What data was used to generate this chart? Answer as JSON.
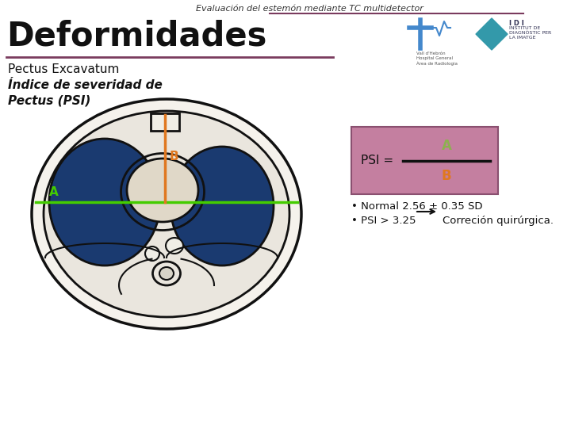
{
  "title_top": "Evaluación del estemón mediante TC multidetector",
  "title_main": "Deformidades",
  "subtitle1": "Pectus Excavatum",
  "subtitle2_line1": "Índice de severidad de",
  "subtitle2_line2": "Pectus (PSI)",
  "bg_color": "#ffffff",
  "title_line_color": "#7a3b5e",
  "top_title_color": "#333333",
  "main_title_color": "#111111",
  "psi_box_color": "#c47fa0",
  "psi_box_edge": "#8a5070",
  "psi_label": "PSI =",
  "psi_A_color": "#8db050",
  "psi_B_color": "#e07820",
  "psi_line_color": "#111111",
  "bullet1": "Normal 2.56 ± 0.35 SD",
  "bullet2_left": "PSI > 3.25",
  "bullet2_right": "Correción quirúrgica.",
  "lung_bg": "#1a3a70",
  "lung_edge": "#111111",
  "green_line_color": "#44cc00",
  "orange_line_color": "#e07820",
  "label_A_color": "#44cc00",
  "label_B_color": "#e07820",
  "body_face": "#f5f2ec",
  "cavity_face": "#eae6de",
  "heart_face": "#e0d8c8",
  "sternum_face": "#f0eee6"
}
